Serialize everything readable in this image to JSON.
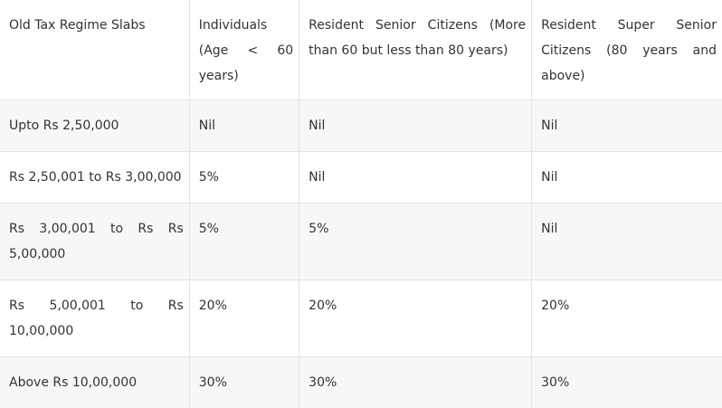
{
  "table": {
    "headers": [
      "Old Tax Regime Slabs",
      "Individuals (Age < 60 years)",
      "Resident Senior Citizens (More than 60 but less than 80 years)",
      "Resident Super Senior Citizens (80 years and above)"
    ],
    "rows": [
      [
        "Upto Rs 2,50,000",
        "Nil",
        "Nil",
        "Nil"
      ],
      [
        "Rs 2,50,001 to Rs 3,00,000",
        "5%",
        "Nil",
        "Nil"
      ],
      [
        "Rs 3,00,001 to Rs Rs 5,00,000",
        "5%",
        "5%",
        "Nil"
      ],
      [
        "Rs 5,00,001 to Rs 10,00,000",
        "20%",
        "20%",
        "20%"
      ],
      [
        "Above Rs 10,00,000",
        "30%",
        "30%",
        "30%"
      ]
    ]
  }
}
